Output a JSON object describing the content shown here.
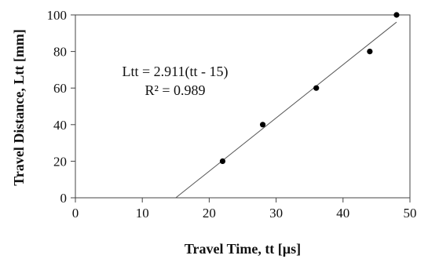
{
  "chart_data": {
    "type": "scatter",
    "title": "",
    "xlabel": "Travel Time, tt  [µs]",
    "ylabel": "Travel Distance, Ltt [mm]",
    "xlim": [
      0,
      50
    ],
    "ylim": [
      0,
      100
    ],
    "x_ticks": [
      0,
      10,
      20,
      30,
      40,
      50
    ],
    "y_ticks": [
      0,
      20,
      40,
      60,
      80,
      100
    ],
    "x_tick_labels": [
      "0",
      "10",
      "20",
      "30",
      "40",
      "50"
    ],
    "y_tick_labels": [
      "0",
      "20",
      "40",
      "60",
      "80",
      "100"
    ],
    "grid": false,
    "legend": "none",
    "series": [
      {
        "x": [
          22,
          28,
          36,
          44,
          48
        ],
        "y": [
          20,
          40,
          60,
          80,
          100
        ],
        "marker": "circle",
        "color": "#000000"
      }
    ],
    "trendline": {
      "slope": 2.911,
      "x_intercept": 15,
      "x_range": [
        15,
        48
      ],
      "color": "#555555"
    },
    "annotations": {
      "equation": "Ltt = 2.911(tt - 15)",
      "r_squared": "R² = 0.989"
    }
  }
}
